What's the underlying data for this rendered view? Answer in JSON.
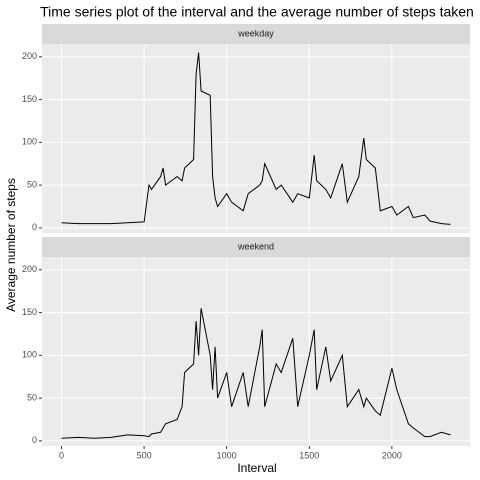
{
  "chart_data": {
    "type": "line",
    "title": "Time series plot of the interval and the average number of steps taken",
    "xlabel": "Interval",
    "ylabel": "Average number of steps",
    "x": [
      0,
      100,
      200,
      300,
      400,
      500,
      530,
      545,
      600,
      615,
      630,
      700,
      730,
      745,
      800,
      815,
      830,
      845,
      900,
      915,
      930,
      945,
      1000,
      1030,
      1100,
      1130,
      1200,
      1215,
      1230,
      1300,
      1330,
      1400,
      1430,
      1500,
      1530,
      1545,
      1600,
      1630,
      1700,
      1730,
      1800,
      1830,
      1845,
      1900,
      1930,
      2000,
      2030,
      2100,
      2130,
      2200,
      2230,
      2300,
      2355
    ],
    "series": [
      {
        "name": "weekday",
        "color": "#000000",
        "values": [
          6,
          5,
          5,
          5,
          6,
          7,
          50,
          45,
          60,
          70,
          50,
          60,
          55,
          70,
          80,
          180,
          205,
          160,
          155,
          60,
          35,
          25,
          40,
          30,
          20,
          40,
          50,
          55,
          75,
          45,
          50,
          30,
          40,
          35,
          85,
          55,
          45,
          35,
          75,
          30,
          60,
          105,
          80,
          70,
          20,
          25,
          15,
          25,
          12,
          15,
          8,
          5,
          4
        ]
      },
      {
        "name": "weekend",
        "color": "#000000",
        "values": [
          3,
          4,
          3,
          4,
          7,
          6,
          5,
          8,
          10,
          15,
          20,
          25,
          40,
          80,
          90,
          140,
          100,
          155,
          100,
          60,
          110,
          50,
          80,
          40,
          80,
          40,
          110,
          130,
          40,
          90,
          80,
          120,
          40,
          100,
          130,
          60,
          110,
          70,
          100,
          40,
          60,
          40,
          50,
          35,
          30,
          85,
          60,
          20,
          15,
          5,
          5,
          10,
          7
        ]
      }
    ],
    "xlim": [
      -118,
      2473
    ],
    "ylim": [
      -6,
      215
    ],
    "xticks": [
      0,
      500,
      1000,
      1500,
      2000
    ],
    "yticks": [
      0,
      50,
      100,
      150,
      200
    ],
    "grid": true
  }
}
